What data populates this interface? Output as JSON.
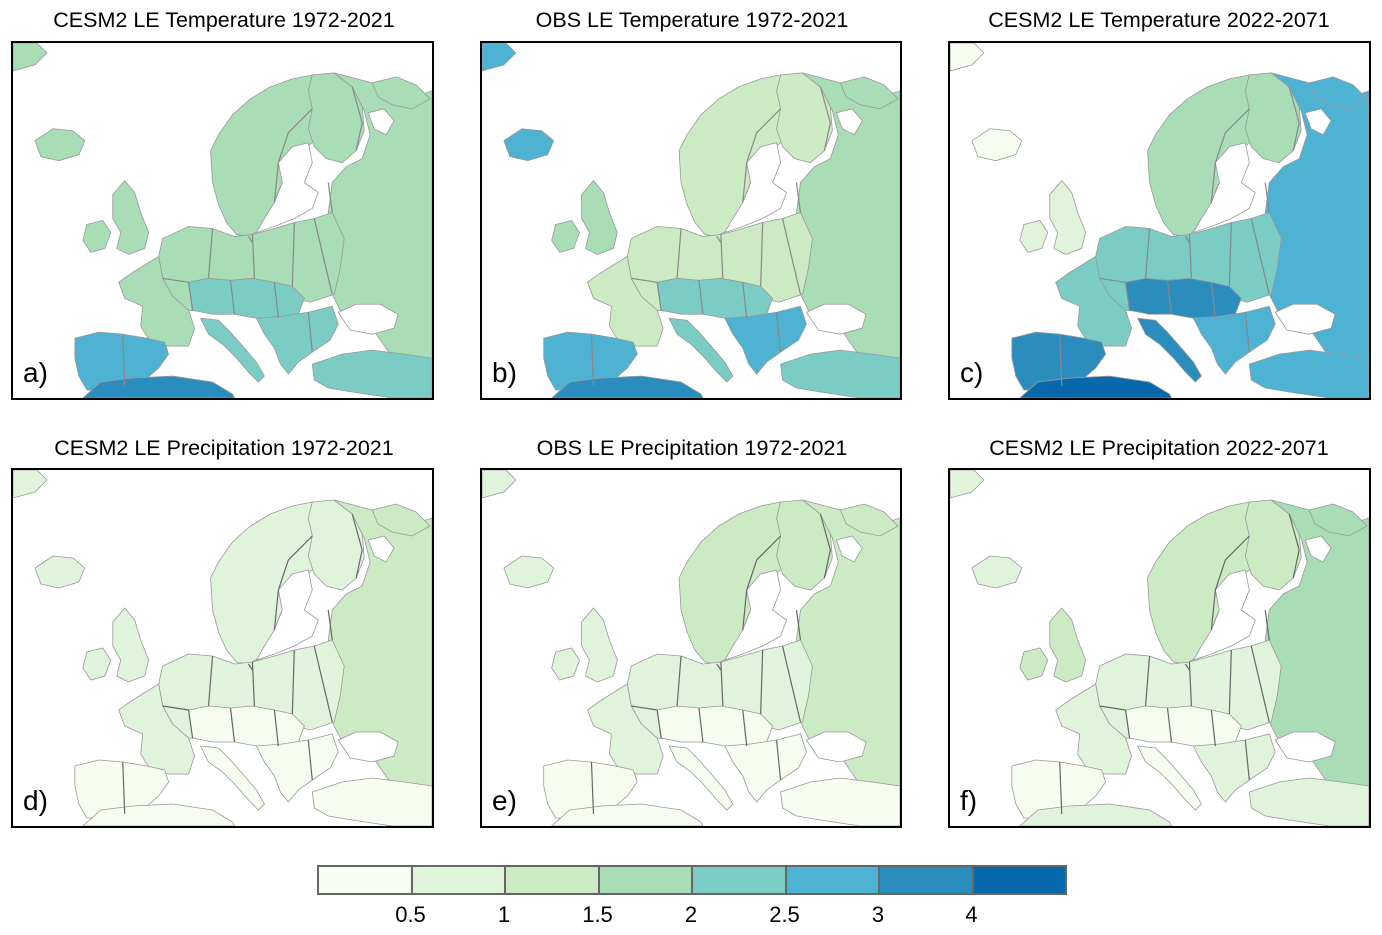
{
  "figure": {
    "panels": [
      {
        "id": "a",
        "label": "a)",
        "title": "CESM2 LE Temperature 1972-2021",
        "variable": "temperature",
        "source": "CESM2 LE",
        "period": "1972-2021"
      },
      {
        "id": "b",
        "label": "b)",
        "title": "OBS LE Temperature 1972-2021",
        "variable": "temperature",
        "source": "OBS LE",
        "period": "1972-2021"
      },
      {
        "id": "c",
        "label": "c)",
        "title": "CESM2 LE Temperature 2022-2071",
        "variable": "temperature",
        "source": "CESM2 LE",
        "period": "2022-2071"
      },
      {
        "id": "d",
        "label": "d)",
        "title": "CESM2 LE Precipitation 1972-2021",
        "variable": "precipitation",
        "source": "CESM2 LE",
        "period": "1972-2021"
      },
      {
        "id": "e",
        "label": "e)",
        "title": "OBS LE Precipitation 1972-2021",
        "variable": "precipitation",
        "source": "OBS LE",
        "period": "1972-2021"
      },
      {
        "id": "f",
        "label": "f)",
        "title": "CESM2 LE Precipitation 2022-2071",
        "variable": "precipitation",
        "source": "CESM2 LE",
        "period": "2022-2071"
      }
    ],
    "colorbar": {
      "tick_labels": [
        "0.5",
        "1",
        "1.5",
        "2",
        "2.5",
        "3",
        "4"
      ],
      "colors": [
        "#f7fcf0",
        "#e0f3db",
        "#ccebc5",
        "#a8ddb5",
        "#7bccc4",
        "#4eb3d3",
        "#2b8cbe",
        "#0868ac"
      ],
      "bins": [
        "<0.5",
        "0.5-1",
        "1-1.5",
        "1.5-2",
        "2-2.5",
        "2.5-3",
        "3-4",
        ">4"
      ]
    },
    "region": "Europe",
    "land_fill_levels": {
      "a": {
        "north": 4,
        "central": 4,
        "alps": 5,
        "iberia": 6,
        "south_east": 5,
        "north_africa": 7,
        "iceland": 4,
        "uk": 4,
        "russia": 4,
        "turkey": 5
      },
      "b": {
        "north": 3,
        "central": 3,
        "alps": 5,
        "iberia": 6,
        "south_east": 6,
        "north_africa": 7,
        "iceland": 6,
        "uk": 4,
        "russia": 4,
        "turkey": 5
      },
      "c": {
        "north": 4,
        "central": 5,
        "alps": 7,
        "iberia": 7,
        "south_east": 6,
        "north_africa": 8,
        "iceland": 1,
        "uk": 2,
        "russia": 6,
        "turkey": 6
      },
      "d": {
        "north": 2,
        "central": 2,
        "alps": 1,
        "iberia": 1,
        "south_east": 1,
        "north_africa": 1,
        "iceland": 2,
        "uk": 2,
        "russia": 3,
        "turkey": 1
      },
      "e": {
        "north": 3,
        "central": 2,
        "alps": 1,
        "iberia": 1,
        "south_east": 1,
        "north_africa": 1,
        "iceland": 2,
        "uk": 2,
        "russia": 3,
        "turkey": 1
      },
      "f": {
        "north": 3,
        "central": 2,
        "alps": 1,
        "iberia": 1,
        "south_east": 2,
        "north_africa": 2,
        "iceland": 2,
        "uk": 3,
        "russia": 4,
        "turkey": 2
      }
    }
  }
}
